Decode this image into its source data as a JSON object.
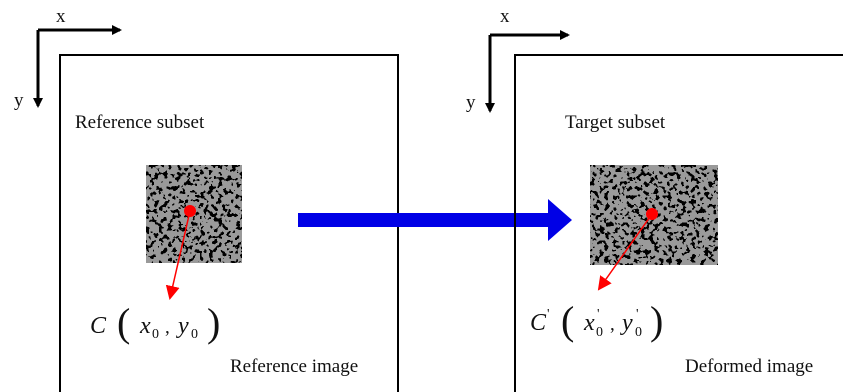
{
  "left": {
    "axis_x": "x",
    "axis_y": "y",
    "subset_label": "Reference subset",
    "image_label": "Reference image",
    "point": {
      "symbol": "C",
      "open": "(",
      "x": "x",
      "x_sub": "0",
      "sep": ",",
      "y": "y",
      "y_sub": "0",
      "close": ")"
    }
  },
  "right": {
    "axis_x": "x",
    "axis_y": "y",
    "subset_label": "Target subset",
    "image_label": "Deformed image",
    "point": {
      "symbol": "C",
      "prime": "'",
      "open": "(",
      "x": "x",
      "x_prime": "'",
      "x_sub": "0",
      "sep": ",",
      "y": "y",
      "y_prime": "'",
      "y_sub": "0",
      "close": ")"
    }
  }
}
